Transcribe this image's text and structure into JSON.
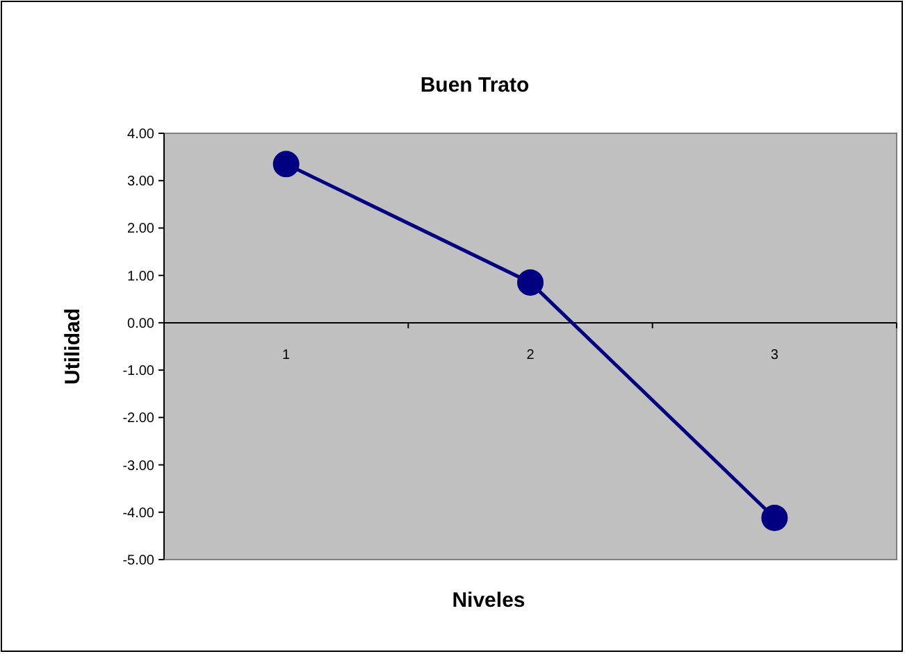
{
  "chart_data": {
    "type": "line",
    "title": "Buen Trato",
    "xlabel": "Niveles",
    "ylabel": "Utilidad",
    "categories": [
      "1",
      "2",
      "3"
    ],
    "series": [
      {
        "color": "#000080",
        "values": [
          3.35,
          0.85,
          -4.12
        ]
      }
    ],
    "ylim": [
      -5,
      4
    ],
    "yticks": [
      {
        "value": 4,
        "label": "4.00"
      },
      {
        "value": 3,
        "label": "3.00"
      },
      {
        "value": 2,
        "label": "2.00"
      },
      {
        "value": 1,
        "label": "1.00"
      },
      {
        "value": 0,
        "label": "0.00"
      },
      {
        "value": -1,
        "label": "-1.00"
      },
      {
        "value": -2,
        "label": "-2.00"
      },
      {
        "value": -3,
        "label": "-3.00"
      },
      {
        "value": -4,
        "label": "-4.00"
      },
      {
        "value": -5,
        "label": "-5.00"
      }
    ],
    "grid": false,
    "marker": "circle",
    "line_style": "solid"
  }
}
